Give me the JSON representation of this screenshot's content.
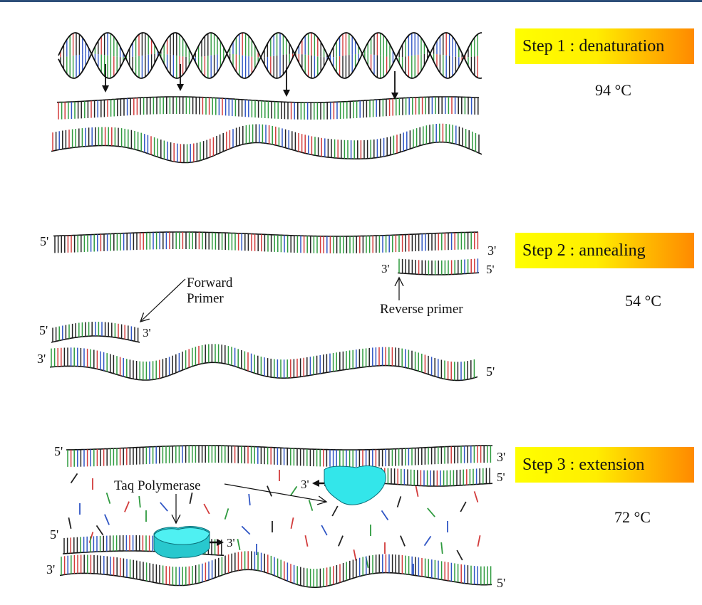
{
  "steps": [
    {
      "label": "Step 1 : denaturation",
      "temp": "94 °C"
    },
    {
      "label": "Step 2 : annealing",
      "temp": "54 °C"
    },
    {
      "label": "Step 3 : extension",
      "temp": "72 °C"
    }
  ],
  "labels": {
    "five_prime": "5'",
    "three_prime": "3'",
    "forward_primer_line1": "Forward",
    "forward_primer_line2": "Primer",
    "reverse_primer": "Reverse primer",
    "taq_polymerase": "Taq Polymerase"
  },
  "colors": {
    "base_palette": [
      "#222222",
      "#d23b3b",
      "#2e9a3e",
      "#2f55c4",
      "#222222",
      "#2e9a3e"
    ],
    "polymerase": "#33e6ea",
    "badge_start": "#ffff00",
    "badge_end": "#ff8a00",
    "top_bar": "#2d4f79"
  }
}
